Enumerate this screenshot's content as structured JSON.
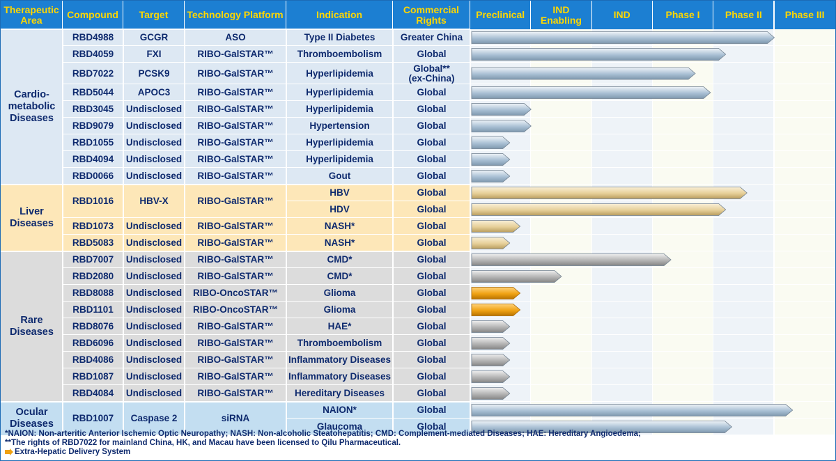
{
  "headers": {
    "area": "Therapeutic Area",
    "compound": "Compound",
    "target": "Target",
    "platform": "Technology Platform",
    "indication": "Indication",
    "rights": "Commercial Rights",
    "phases": [
      "Preclinical",
      "IND Enabling",
      "IND",
      "Phase I",
      "Phase II",
      "Phase III"
    ]
  },
  "areas": [
    {
      "name": "Cardio-metabolic Diseases",
      "color": "#dde8f3"
    },
    {
      "name": "Liver Diseases",
      "color": "#fde7b8"
    },
    {
      "name": "Rare Diseases",
      "color": "#dcdcdc"
    },
    {
      "name": "Ocular Diseases",
      "color": "#c3def1"
    }
  ],
  "colors": {
    "header": "#1c7fd2",
    "header_text": "#ffd700",
    "cell_text": "#0e2a6e",
    "bar_blue": "#b4c9da",
    "bar_tan": "#e8d3a2",
    "bar_gray": "#b4b4b4",
    "bar_orange": "#f0a213"
  },
  "chart_data": {
    "type": "bar",
    "x_axis": [
      "Preclinical",
      "IND Enabling",
      "IND",
      "Phase I",
      "Phase II",
      "Phase III"
    ],
    "progress_unit": "phase columns completed (0 to 6)",
    "rows": [
      {
        "area": "Cardio-metabolic Diseases",
        "compound": "RBD4988",
        "target": "GCGR",
        "platform": "ASO",
        "indication": "Type II Diabetes",
        "rights": "Greater China",
        "progress": 5.0,
        "style": "blue"
      },
      {
        "area": "Cardio-metabolic Diseases",
        "compound": "RBD4059",
        "target": "FXI",
        "platform": "RIBO-GalSTAR™",
        "indication": "Thromboembolism",
        "rights": "Global",
        "progress": 4.2,
        "style": "blue"
      },
      {
        "area": "Cardio-metabolic Diseases",
        "compound": "RBD7022",
        "target": "PCSK9",
        "platform": "RIBO-GalSTAR™",
        "indication": "Hyperlipidemia",
        "rights": "Global** (ex-China)",
        "progress": 3.7,
        "style": "blue"
      },
      {
        "area": "Cardio-metabolic Diseases",
        "compound": "RBD5044",
        "target": "APOC3",
        "platform": "RIBO-GalSTAR™",
        "indication": "Hyperlipidemia",
        "rights": "Global",
        "progress": 3.95,
        "style": "blue"
      },
      {
        "area": "Cardio-metabolic Diseases",
        "compound": "RBD3045",
        "target": "Undisclosed",
        "platform": "RIBO-GalSTAR™",
        "indication": "Hyperlipidemia",
        "rights": "Global",
        "progress": 1.0,
        "style": "blue"
      },
      {
        "area": "Cardio-metabolic Diseases",
        "compound": "RBD9079",
        "target": "Undisclosed",
        "platform": "RIBO-GalSTAR™",
        "indication": "Hypertension",
        "rights": "Global",
        "progress": 1.0,
        "style": "blue"
      },
      {
        "area": "Cardio-metabolic Diseases",
        "compound": "RBD1055",
        "target": "Undisclosed",
        "platform": "RIBO-GalSTAR™",
        "indication": "Hyperlipidemia",
        "rights": "Global",
        "progress": 0.65,
        "style": "blue"
      },
      {
        "area": "Cardio-metabolic Diseases",
        "compound": "RBD4094",
        "target": "Undisclosed",
        "platform": "RIBO-GalSTAR™",
        "indication": "Hyperlipidemia",
        "rights": "Global",
        "progress": 0.65,
        "style": "blue"
      },
      {
        "area": "Cardio-metabolic Diseases",
        "compound": "RBD0066",
        "target": "Undisclosed",
        "platform": "RIBO-GalSTAR™",
        "indication": "Gout",
        "rights": "Global",
        "progress": 0.65,
        "style": "blue"
      },
      {
        "area": "Liver Diseases",
        "compound": "RBD1016",
        "target": "HBV-X",
        "platform": "RIBO-GalSTAR™",
        "indication": "HBV",
        "rights": "Global",
        "progress": 4.55,
        "style": "tan"
      },
      {
        "area": "Liver Diseases",
        "compound": "RBD1016",
        "target": "HBV-X",
        "platform": "RIBO-GalSTAR™",
        "indication": "HDV",
        "rights": "Global",
        "progress": 4.2,
        "style": "tan"
      },
      {
        "area": "Liver Diseases",
        "compound": "RBD1073",
        "target": "Undisclosed",
        "platform": "RIBO-GalSTAR™",
        "indication": "NASH*",
        "rights": "Global",
        "progress": 0.82,
        "style": "tan"
      },
      {
        "area": "Liver Diseases",
        "compound": "RBD5083",
        "target": "Undisclosed",
        "platform": "RIBO-GalSTAR™",
        "indication": "NASH*",
        "rights": "Global",
        "progress": 0.65,
        "style": "tan"
      },
      {
        "area": "Rare Diseases",
        "compound": "RBD7007",
        "target": "Undisclosed",
        "platform": "RIBO-GalSTAR™",
        "indication": "CMD*",
        "rights": "Global",
        "progress": 3.3,
        "style": "gray"
      },
      {
        "area": "Rare Diseases",
        "compound": "RBD2080",
        "target": "Undisclosed",
        "platform": "RIBO-GalSTAR™",
        "indication": "CMD*",
        "rights": "Global",
        "progress": 1.5,
        "style": "gray"
      },
      {
        "area": "Rare Diseases",
        "compound": "RBD8088",
        "target": "Undisclosed",
        "platform": "RIBO-OncoSTAR™",
        "indication": "Glioma",
        "rights": "Global",
        "progress": 0.82,
        "style": "orange"
      },
      {
        "area": "Rare Diseases",
        "compound": "RBD1101",
        "target": "Undisclosed",
        "platform": "RIBO-OncoSTAR™",
        "indication": "Glioma",
        "rights": "Global",
        "progress": 0.82,
        "style": "orange"
      },
      {
        "area": "Rare Diseases",
        "compound": "RBD8076",
        "target": "Undisclosed",
        "platform": "RIBO-GalSTAR™",
        "indication": "HAE*",
        "rights": "Global",
        "progress": 0.65,
        "style": "gray"
      },
      {
        "area": "Rare Diseases",
        "compound": "RBD6096",
        "target": "Undisclosed",
        "platform": "RIBO-GalSTAR™",
        "indication": "Thromboembolism",
        "rights": "Global",
        "progress": 0.65,
        "style": "gray"
      },
      {
        "area": "Rare Diseases",
        "compound": "RBD4086",
        "target": "Undisclosed",
        "platform": "RIBO-GalSTAR™",
        "indication": "Inflammatory Diseases",
        "rights": "Global",
        "progress": 0.65,
        "style": "gray"
      },
      {
        "area": "Rare Diseases",
        "compound": "RBD1087",
        "target": "Undisclosed",
        "platform": "RIBO-GalSTAR™",
        "indication": "Inflammatory Diseases",
        "rights": "Global",
        "progress": 0.65,
        "style": "gray"
      },
      {
        "area": "Rare Diseases",
        "compound": "RBD4084",
        "target": "Undisclosed",
        "platform": "RIBO-GalSTAR™",
        "indication": "Hereditary Diseases",
        "rights": "Global",
        "progress": 0.65,
        "style": "gray"
      },
      {
        "area": "Ocular Diseases",
        "compound": "RBD1007",
        "target": "Caspase 2",
        "platform": "siRNA",
        "indication": "NAION*",
        "rights": "Global",
        "progress": 5.3,
        "style": "blue"
      },
      {
        "area": "Ocular Diseases",
        "compound": "RBD1007",
        "target": "Caspase 2",
        "platform": "siRNA",
        "indication": "Glaucoma",
        "rights": "Global",
        "progress": 4.3,
        "style": "blue"
      }
    ]
  },
  "footnotes": [
    "*NAION: Non-arteritic Anterior Ischemic Optic Neuropathy; NASH: Non-alcoholic Steatohepatitis; CMD: Complement-mediated Diseases; HAE: Hereditary Angioedema;",
    "**The rights of RBD7022 for mainland China, HK, and Macau have been licensed to Qilu Pharmaceutical."
  ],
  "legend": {
    "label": "Extra-Hepatic Delivery System",
    "icon": "orange-arrow-icon"
  }
}
